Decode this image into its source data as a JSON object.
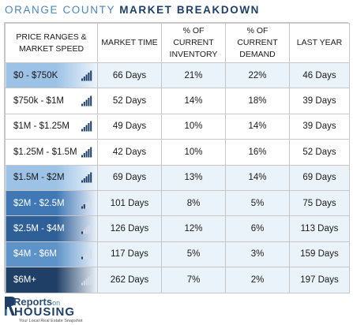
{
  "title": {
    "part1": "ORANGE COUNTY",
    "part2": "MARKET BREAKDOWN"
  },
  "headers": [
    "PRICE RANGES & MARKET SPEED",
    "MARKET TIME",
    "% OF CURRENT INVENTORY",
    "% OF CURRENT DEMAND",
    "LAST YEAR"
  ],
  "rows": [
    {
      "price": "$0 - $750K",
      "market_time": "66 Days",
      "inventory": "21%",
      "demand": "22%",
      "last_year": "46 Days",
      "speed_bars_filled": 5,
      "cell_bg": "#9cc3e6",
      "text_color": "#1a1a1a"
    },
    {
      "price": "$750k - $1M",
      "market_time": "52 Days",
      "inventory": "14%",
      "demand": "18%",
      "last_year": "39 Days",
      "speed_bars_filled": 5,
      "cell_bg": "#ffffff",
      "text_color": "#1a1a1a"
    },
    {
      "price": "$1M - $1.25M",
      "market_time": "49 Days",
      "inventory": "10%",
      "demand": "14%",
      "last_year": "39 Days",
      "speed_bars_filled": 5,
      "cell_bg": "#ffffff",
      "text_color": "#1a1a1a"
    },
    {
      "price": "$1.25M - $1.5M",
      "market_time": "42 Days",
      "inventory": "10%",
      "demand": "16%",
      "last_year": "52 Days",
      "speed_bars_filled": 5,
      "cell_bg": "#ffffff",
      "text_color": "#1a1a1a"
    },
    {
      "price": "$1.5M - $2M",
      "market_time": "69 Days",
      "inventory": "13%",
      "demand": "14%",
      "last_year": "69 Days",
      "speed_bars_filled": 5,
      "cell_bg": "#9cc3e6",
      "text_color": "#1a1a1a"
    },
    {
      "price": "$2M - $2.5M",
      "market_time": "101 Days",
      "inventory": "8%",
      "demand": "5%",
      "last_year": "75 Days",
      "speed_bars_filled": 2,
      "cell_bg": "#3f78b4",
      "text_color": "#ffffff"
    },
    {
      "price": "$2.5M - $4M",
      "market_time": "126 Days",
      "inventory": "12%",
      "demand": "6%",
      "last_year": "113 Days",
      "speed_bars_filled": 1,
      "cell_bg": "#2e5f96",
      "text_color": "#ffffff"
    },
    {
      "price": "$4M - $6M",
      "market_time": "117 Days",
      "inventory": "5%",
      "demand": "3%",
      "last_year": "159 Days",
      "speed_bars_filled": 1,
      "cell_bg": "#5d93c9",
      "text_color": "#ffffff"
    },
    {
      "price": "$6M+",
      "market_time": "262 Days",
      "inventory": "7%",
      "demand": "2%",
      "last_year": "197 Days",
      "speed_bars_filled": 0,
      "cell_bg": "#1f3f66",
      "text_color": "#ffffff"
    }
  ],
  "colors": {
    "title_light": "#4d87b9",
    "title_dark": "#1f3f66",
    "row_shade": "#eaf2fa",
    "bar_empty": "#d3dde8"
  },
  "footer": {
    "brand_top": "Reports",
    "brand_on": "on",
    "brand_bottom": "HOUSING",
    "tagline": "Your Local Real Estate Snapshot"
  }
}
